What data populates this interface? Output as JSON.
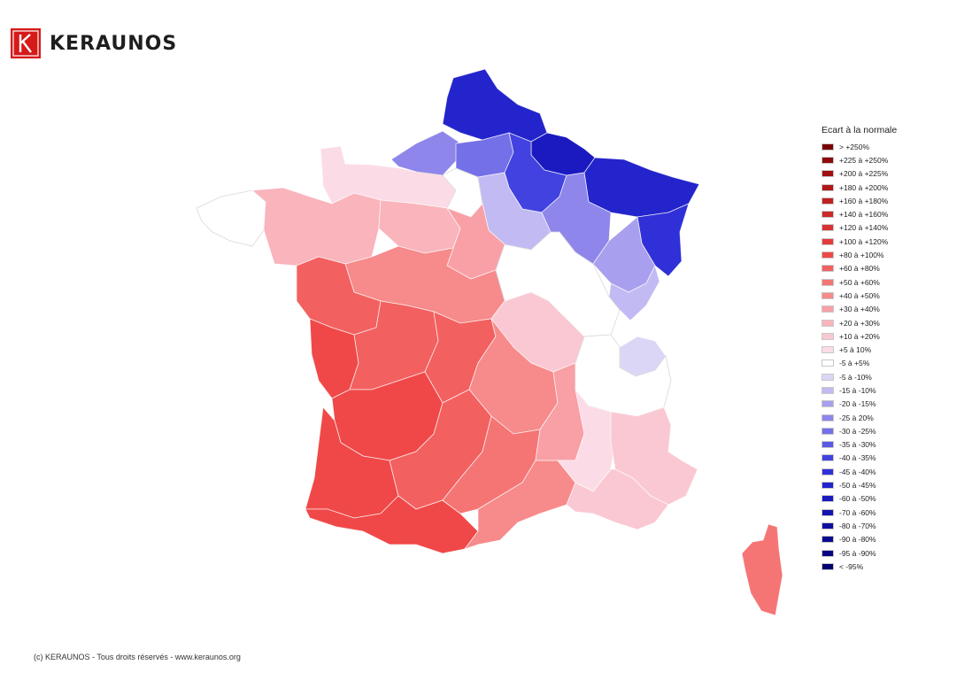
{
  "brand": {
    "name": "KERAUNOS",
    "mark_letter": "K"
  },
  "legend": {
    "title": "Ecart à la normale",
    "items": [
      {
        "label": "> +250%",
        "color": "#7a0000"
      },
      {
        "label": "+225 à +250%",
        "color": "#8e0a0a"
      },
      {
        "label": "+200 à +225%",
        "color": "#a01010"
      },
      {
        "label": "+180 à +200%",
        "color": "#b01818"
      },
      {
        "label": "+160 à +180%",
        "color": "#bf2020"
      },
      {
        "label": "+140 à +160%",
        "color": "#cc2828"
      },
      {
        "label": "+120 à +140%",
        "color": "#d93232"
      },
      {
        "label": "+100 à +120%",
        "color": "#e63b3b"
      },
      {
        "label": "+80 à +100%",
        "color": "#f04848"
      },
      {
        "label": "+60 à +80%",
        "color": "#f36060"
      },
      {
        "label": "+50 à +60%",
        "color": "#f57575"
      },
      {
        "label": "+40 à +50%",
        "color": "#f78a8a"
      },
      {
        "label": "+30 à +40%",
        "color": "#f8a0a6"
      },
      {
        "label": "+20 à +30%",
        "color": "#f9b4bc"
      },
      {
        "label": "+10 à +20%",
        "color": "#fac8d2"
      },
      {
        "label": "+5 à 10%",
        "color": "#fbdce6"
      },
      {
        "label": "-5 à +5%",
        "color": "#ffffff"
      },
      {
        "label": "-5 à -10%",
        "color": "#dcd6f6"
      },
      {
        "label": "-15 à -10%",
        "color": "#c2baf2"
      },
      {
        "label": "-20 à -15%",
        "color": "#a8a0ee"
      },
      {
        "label": "-25 à 20%",
        "color": "#8e86ea"
      },
      {
        "label": "-30 à -25%",
        "color": "#7470e8"
      },
      {
        "label": "-35 à -30%",
        "color": "#5a58e4"
      },
      {
        "label": "-40 à -35%",
        "color": "#4242e0"
      },
      {
        "label": "-45 à -40%",
        "color": "#3030d8"
      },
      {
        "label": "-50 à -45%",
        "color": "#2424cc"
      },
      {
        "label": "-60 à -50%",
        "color": "#1a1ac0"
      },
      {
        "label": "-70 à -60%",
        "color": "#1414b0"
      },
      {
        "label": "-80 à -70%",
        "color": "#0e0ea0"
      },
      {
        "label": "-90 à -80%",
        "color": "#0a0a90"
      },
      {
        "label": "-95 à -90%",
        "color": "#060680"
      },
      {
        "label": "< -95%",
        "color": "#020270"
      }
    ]
  },
  "footer": {
    "text": "(c) KERAUNOS - Tous droits réservés - www.keraunos.org"
  },
  "map": {
    "departments": [
      {
        "name": "north-coast",
        "color": "#2424cc"
      },
      {
        "name": "north-east-1",
        "color": "#1a1ac0"
      },
      {
        "name": "north-east-2",
        "color": "#2424cc"
      },
      {
        "name": "east-border",
        "color": "#3030d8"
      },
      {
        "name": "normandy-east",
        "color": "#8e86ea"
      },
      {
        "name": "picardy-south",
        "color": "#7470e8"
      },
      {
        "name": "champagne",
        "color": "#4242e0"
      },
      {
        "name": "paris-east",
        "color": "#c2baf2"
      },
      {
        "name": "lorraine-south",
        "color": "#8e86ea"
      },
      {
        "name": "vosges",
        "color": "#a8a0ee"
      },
      {
        "name": "alsace-south",
        "color": "#5a58e4"
      },
      {
        "name": "franche-comte",
        "color": "#c2baf2"
      },
      {
        "name": "savoy",
        "color": "#dcd6f6"
      },
      {
        "name": "cotentin",
        "color": "#fbdce6"
      },
      {
        "name": "brittany-west",
        "color": "#ffffff"
      },
      {
        "name": "brittany",
        "color": "#f9b4bc"
      },
      {
        "name": "normandy-south",
        "color": "#f9b4bc"
      },
      {
        "name": "paris-region",
        "color": "#ffffff"
      },
      {
        "name": "centre-north",
        "color": "#f8a0a6"
      },
      {
        "name": "loire",
        "color": "#f78a8a"
      },
      {
        "name": "pays-de-loire",
        "color": "#f36060"
      },
      {
        "name": "burgundy",
        "color": "#ffffff"
      },
      {
        "name": "burgundy-south",
        "color": "#fac8d2"
      },
      {
        "name": "vendee",
        "color": "#f04848"
      },
      {
        "name": "poitou",
        "color": "#f36060"
      },
      {
        "name": "limousin",
        "color": "#f36060"
      },
      {
        "name": "auvergne",
        "color": "#f78a8a"
      },
      {
        "name": "rhone-alpes-north",
        "color": "#ffffff"
      },
      {
        "name": "aquitaine",
        "color": "#f04848"
      },
      {
        "name": "landes",
        "color": "#f04848"
      },
      {
        "name": "midi-pyrenees",
        "color": "#f36060"
      },
      {
        "name": "pyrenees",
        "color": "#f04848"
      },
      {
        "name": "tarn",
        "color": "#f57575"
      },
      {
        "name": "languedoc",
        "color": "#f78a8a"
      },
      {
        "name": "gard",
        "color": "#f8a0a6"
      },
      {
        "name": "drome",
        "color": "#fbdce6"
      },
      {
        "name": "alps-south",
        "color": "#fac8d2"
      },
      {
        "name": "provence",
        "color": "#fac8d2"
      },
      {
        "name": "corsica",
        "color": "#f57575"
      }
    ]
  }
}
